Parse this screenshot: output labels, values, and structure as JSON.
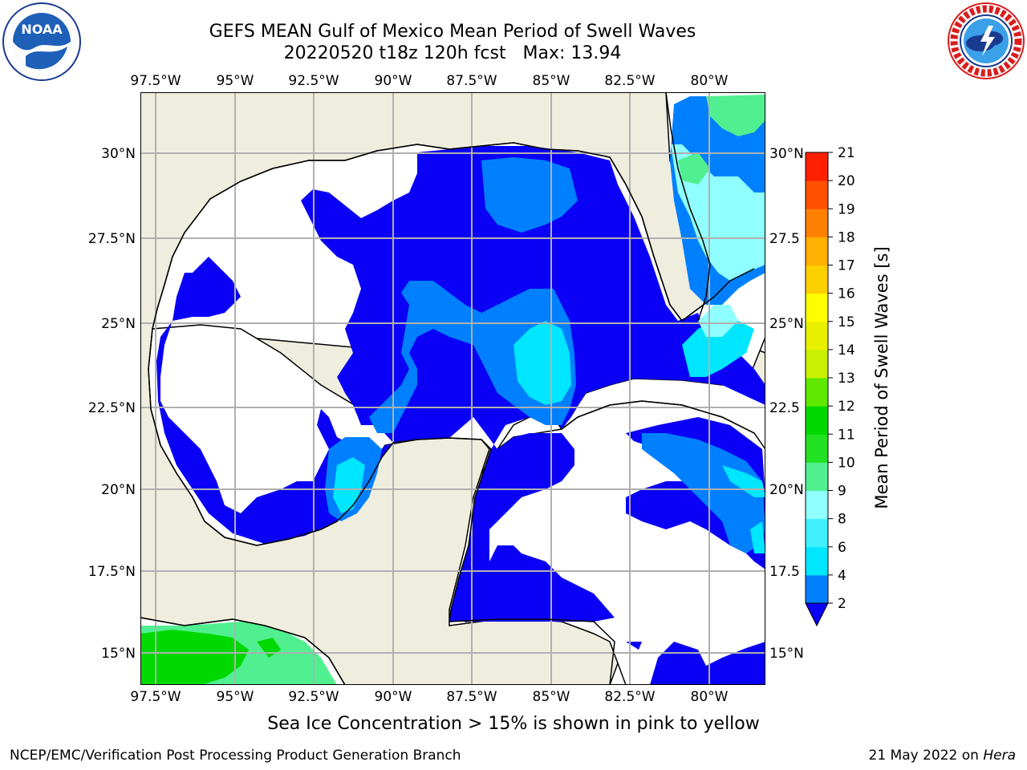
{
  "title": {
    "line1": "GEFS MEAN Gulf of Mexico Mean Period of Swell Waves",
    "line2": "20220520 t18z 120h fcst   Max: 13.94"
  },
  "map": {
    "lon_labels": [
      "97.5°W",
      "95°W",
      "92.5°W",
      "90°W",
      "87.5°W",
      "85°W",
      "82.5°W",
      "80°W"
    ],
    "lat_labels_left": [
      "30°N",
      "27.5°N",
      "25°N",
      "22.5°N",
      "20°N",
      "17.5°N",
      "15°N"
    ],
    "lat_labels_right": [
      "30°N",
      "27.5",
      "25°N",
      "22.5",
      "20°N",
      "17.5",
      "15°N"
    ],
    "extent": {
      "lon_min": -98,
      "lon_max": -78.2,
      "lat_min": 14.0,
      "lat_max": 31.8
    },
    "colors": {
      "land": "#efedde",
      "ocean_white": "#ffffff",
      "coast": "#000000",
      "grid": "#b0b0b0"
    }
  },
  "colorbar": {
    "title": "Mean Period of Swell Waves [s]",
    "tick_labels": [
      "2",
      "4",
      "6",
      "8",
      "9",
      "10",
      "11",
      "12",
      "13",
      "14",
      "15",
      "16",
      "17",
      "18",
      "19",
      "20",
      "21"
    ],
    "colors": [
      "#0a00f5",
      "#0080ff",
      "#00e6ff",
      "#40f0ff",
      "#90ffff",
      "#50f090",
      "#22e022",
      "#00d800",
      "#60e800",
      "#c8f000",
      "#e8f000",
      "#ffff00",
      "#ffd000",
      "#ffb000",
      "#ff8000",
      "#ff5000",
      "#ff2000",
      "#ff0000"
    ],
    "extend_min": true
  },
  "footer": {
    "ice_note": "Sea Ice Concentration > 15% is shown in pink to yellow",
    "left": "NCEP/EMC/Verification Post Processing Product Generation Branch",
    "date": "21 May 2022 on ",
    "machine": "Hera"
  },
  "logos": {
    "left": "noaa-logo",
    "right": "national-weather-service-logo"
  }
}
